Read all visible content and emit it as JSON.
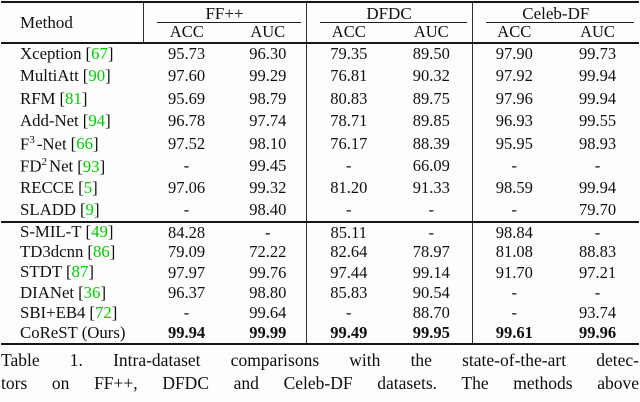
{
  "table": {
    "headers": {
      "method": "Method",
      "groups": [
        "FF++",
        "DFDC",
        "Celeb-DF"
      ],
      "metrics": [
        "ACC",
        "AUC"
      ]
    },
    "cite_brackets": [
      "[",
      "]"
    ],
    "rows_top": [
      {
        "pre": "Xception",
        "sup": "",
        "post": "",
        "cite": "67",
        "bold": false,
        "values": [
          "95.73",
          "96.30",
          "79.35",
          "89.50",
          "97.90",
          "99.73"
        ]
      },
      {
        "pre": "MultiAtt",
        "sup": "",
        "post": "",
        "cite": "90",
        "bold": false,
        "values": [
          "97.60",
          "99.29",
          "76.81",
          "90.32",
          "97.92",
          "99.94"
        ]
      },
      {
        "pre": "RFM",
        "sup": "",
        "post": "",
        "cite": "81",
        "bold": false,
        "values": [
          "95.69",
          "98.79",
          "80.83",
          "89.75",
          "97.96",
          "99.94"
        ]
      },
      {
        "pre": "Add-Net",
        "sup": "",
        "post": "",
        "cite": "94",
        "bold": false,
        "values": [
          "96.78",
          "97.74",
          "78.71",
          "89.85",
          "96.93",
          "99.55"
        ]
      },
      {
        "pre": "F",
        "sup": "3",
        "post": "-Net",
        "cite": "66",
        "bold": false,
        "values": [
          "97.52",
          "98.10",
          "76.17",
          "88.39",
          "95.95",
          "98.93"
        ]
      },
      {
        "pre": "FD",
        "sup": "2",
        "post": "Net",
        "cite": "93",
        "bold": false,
        "values": [
          "-",
          "99.45",
          "-",
          "66.09",
          "-",
          "-"
        ]
      },
      {
        "pre": "RECCE",
        "sup": "",
        "post": "",
        "cite": "5",
        "bold": false,
        "values": [
          "97.06",
          "99.32",
          "81.20",
          "91.33",
          "98.59",
          "99.94"
        ]
      },
      {
        "pre": "SLADD",
        "sup": "",
        "post": "",
        "cite": "9",
        "bold": false,
        "values": [
          "-",
          "98.40",
          "-",
          "-",
          "-",
          "79.70"
        ]
      }
    ],
    "rows_bottom": [
      {
        "pre": "S-MIL-T",
        "sup": "",
        "post": "",
        "cite": "49",
        "bold": false,
        "values": [
          "84.28",
          "-",
          "85.11",
          "-",
          "98.84",
          "-"
        ]
      },
      {
        "pre": "TD3dcnn",
        "sup": "",
        "post": "",
        "cite": "86",
        "bold": false,
        "values": [
          "79.09",
          "72.22",
          "82.64",
          "78.97",
          "81.08",
          "88.83"
        ]
      },
      {
        "pre": "STDT",
        "sup": "",
        "post": "",
        "cite": "87",
        "bold": false,
        "values": [
          "97.97",
          "99.76",
          "97.44",
          "99.14",
          "91.70",
          "97.21"
        ]
      },
      {
        "pre": "DIANet",
        "sup": "",
        "post": "",
        "cite": "36",
        "bold": false,
        "values": [
          "96.37",
          "98.80",
          "85.83",
          "90.54",
          "-",
          "-"
        ]
      },
      {
        "pre": "SBI+EB4",
        "sup": "",
        "post": "",
        "cite": "72",
        "bold": false,
        "values": [
          "-",
          "99.64",
          "-",
          "88.70",
          "-",
          "93.74"
        ]
      },
      {
        "pre": "CoReST (Ours)",
        "sup": "",
        "post": "",
        "cite": "",
        "bold": true,
        "values": [
          "99.94",
          "99.99",
          "99.49",
          "99.95",
          "99.61",
          "99.96"
        ]
      }
    ]
  },
  "caption": {
    "line1": "Table 1. Intra-dataset comparisons with the state-of-the-art detec-",
    "line2": "tors on FF++, DFDC and Celeb-DF datasets. The methods above"
  },
  "colors": {
    "citation_green": "#00cc00",
    "rule_color": "#161616"
  }
}
